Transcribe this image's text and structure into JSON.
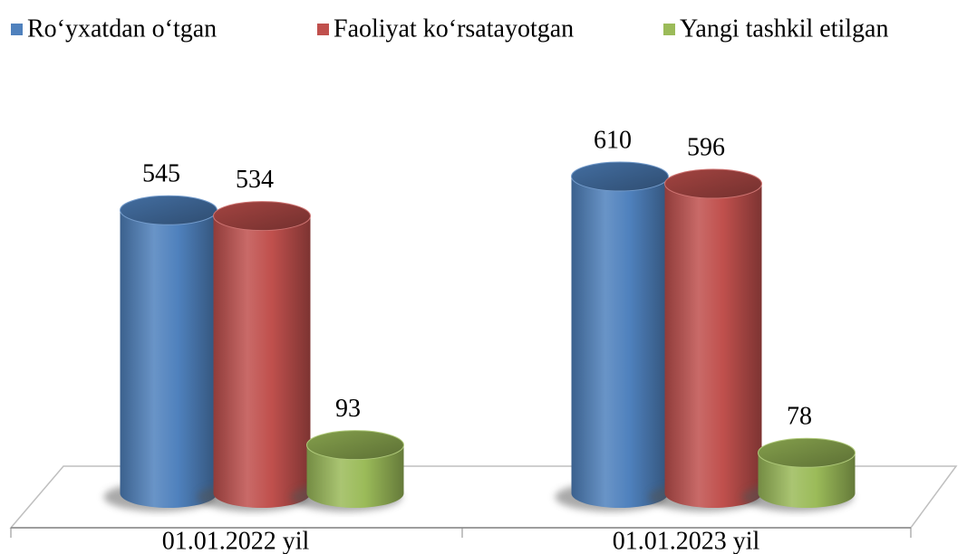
{
  "chart_data": {
    "type": "bar",
    "categories": [
      "01.01.2022 yil",
      "01.01.2023 yil"
    ],
    "series": [
      {
        "name": "Ro‘yxatdan o‘tgan",
        "color": "#4f81bd",
        "values": [
          545,
          610
        ]
      },
      {
        "name": "Faoliyat ko‘rsatayotgan",
        "color": "#c0504d",
        "values": [
          534,
          596
        ]
      },
      {
        "name": "Yangi tashkil etilgan",
        "color": "#9bbb59",
        "values": [
          93,
          78
        ]
      }
    ],
    "legend": "top"
  }
}
